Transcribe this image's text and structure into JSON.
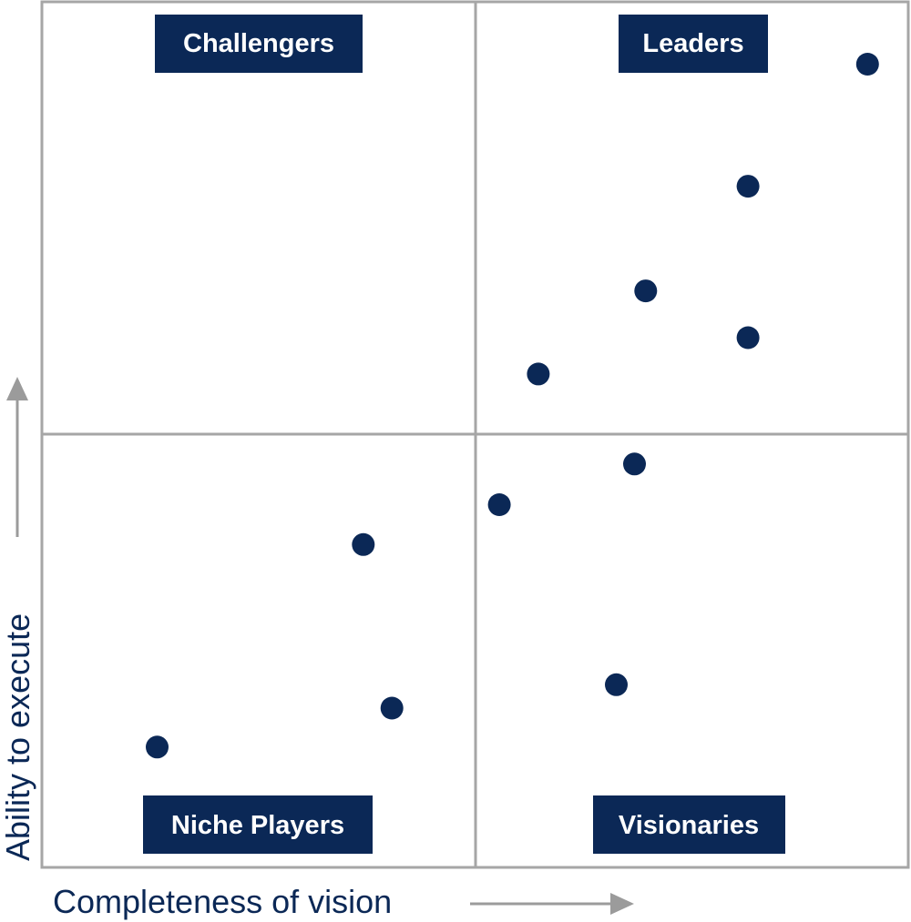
{
  "colors": {
    "navy": "#0b2856",
    "grid": "#a6a6a6",
    "arrow": "#9b9b9b",
    "label_text": "#ffffff",
    "axis_text": "#0b2856"
  },
  "chart_data": {
    "type": "scatter",
    "xlabel": "Completeness of vision",
    "ylabel": "Ability to execute",
    "xlim": [
      0,
      100
    ],
    "ylim": [
      0,
      100
    ],
    "grid": "quadrant dividers at midpoint",
    "quadrants": {
      "top_left": "Challengers",
      "top_right": "Leaders",
      "bottom_left": "Niche Players",
      "bottom_right": "Visionaries"
    },
    "points": [
      {
        "x": 95.3,
        "y": 92.8
      },
      {
        "x": 81.5,
        "y": 78.7
      },
      {
        "x": 69.7,
        "y": 66.6
      },
      {
        "x": 81.5,
        "y": 61.2
      },
      {
        "x": 57.3,
        "y": 57.0
      },
      {
        "x": 68.4,
        "y": 46.6
      },
      {
        "x": 52.8,
        "y": 41.9
      },
      {
        "x": 37.1,
        "y": 37.3
      },
      {
        "x": 66.3,
        "y": 21.1
      },
      {
        "x": 40.4,
        "y": 18.4
      },
      {
        "x": 13.3,
        "y": 13.9
      }
    ]
  }
}
